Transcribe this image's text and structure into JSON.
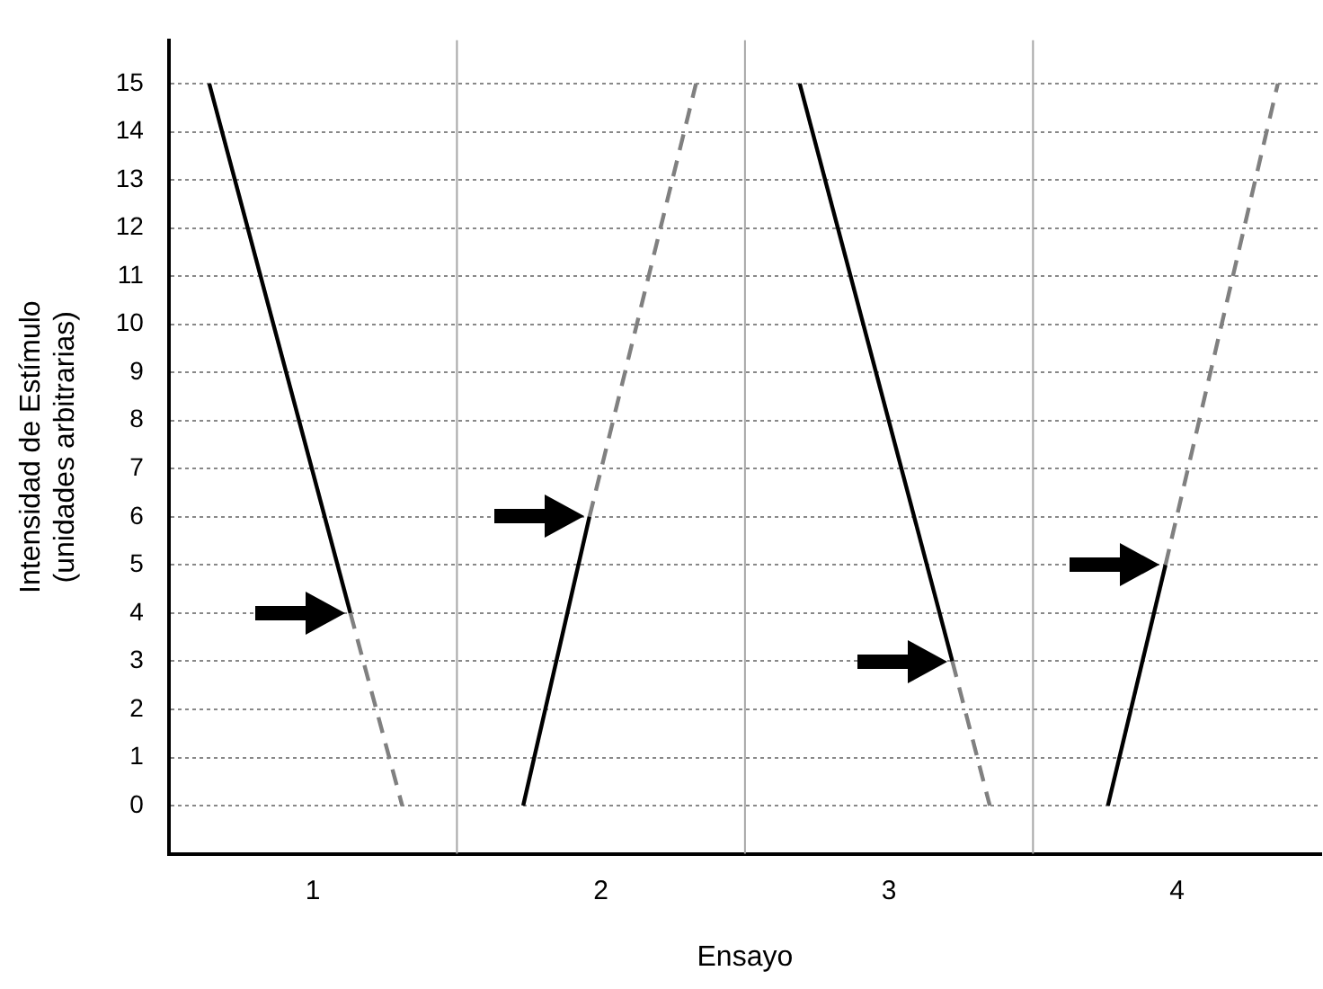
{
  "chart_data": {
    "type": "line",
    "xlabel": "Ensayo",
    "ylabel": "Intensidad de Estímulo\n(unidades arbitrarias)",
    "xlim": [
      0.5,
      4.5
    ],
    "xticks": [
      1,
      2,
      3,
      4
    ],
    "ylim": [
      -1,
      15.9
    ],
    "yticks": [
      0,
      1,
      2,
      3,
      4,
      5,
      6,
      7,
      8,
      9,
      10,
      11,
      12,
      13,
      14,
      15
    ],
    "grid": "y",
    "marker": "none",
    "ref_lines": [
      {
        "axis": "x",
        "value": 1.5,
        "color": "#a6a6a6"
      },
      {
        "axis": "x",
        "value": 2.5,
        "color": "#a6a6a6"
      },
      {
        "axis": "x",
        "value": 3.5,
        "color": "#a6a6a6"
      }
    ],
    "series": [
      {
        "color": "#000000",
        "line_style": "solid",
        "x": [
          0.64,
          1.13
        ],
        "values": [
          15,
          4
        ]
      },
      {
        "color": "#808080",
        "line_style": "dashed",
        "x": [
          1.13,
          1.31
        ],
        "values": [
          4,
          0
        ]
      },
      {
        "color": "#000000",
        "line_style": "solid",
        "x": [
          1.73,
          1.96
        ],
        "values": [
          0,
          6
        ]
      },
      {
        "color": "#808080",
        "line_style": "dashed",
        "x": [
          1.96,
          2.33
        ],
        "values": [
          6,
          15
        ]
      },
      {
        "color": "#000000",
        "line_style": "solid",
        "x": [
          2.69,
          3.22
        ],
        "values": [
          15,
          3
        ]
      },
      {
        "color": "#808080",
        "line_style": "dashed",
        "x": [
          3.22,
          3.35
        ],
        "values": [
          3,
          0
        ]
      },
      {
        "color": "#000000",
        "line_style": "solid",
        "x": [
          3.76,
          3.96
        ],
        "values": [
          0,
          5
        ]
      },
      {
        "color": "#808080",
        "line_style": "dashed",
        "x": [
          3.96,
          4.35
        ],
        "values": [
          5,
          15
        ]
      }
    ]
  }
}
